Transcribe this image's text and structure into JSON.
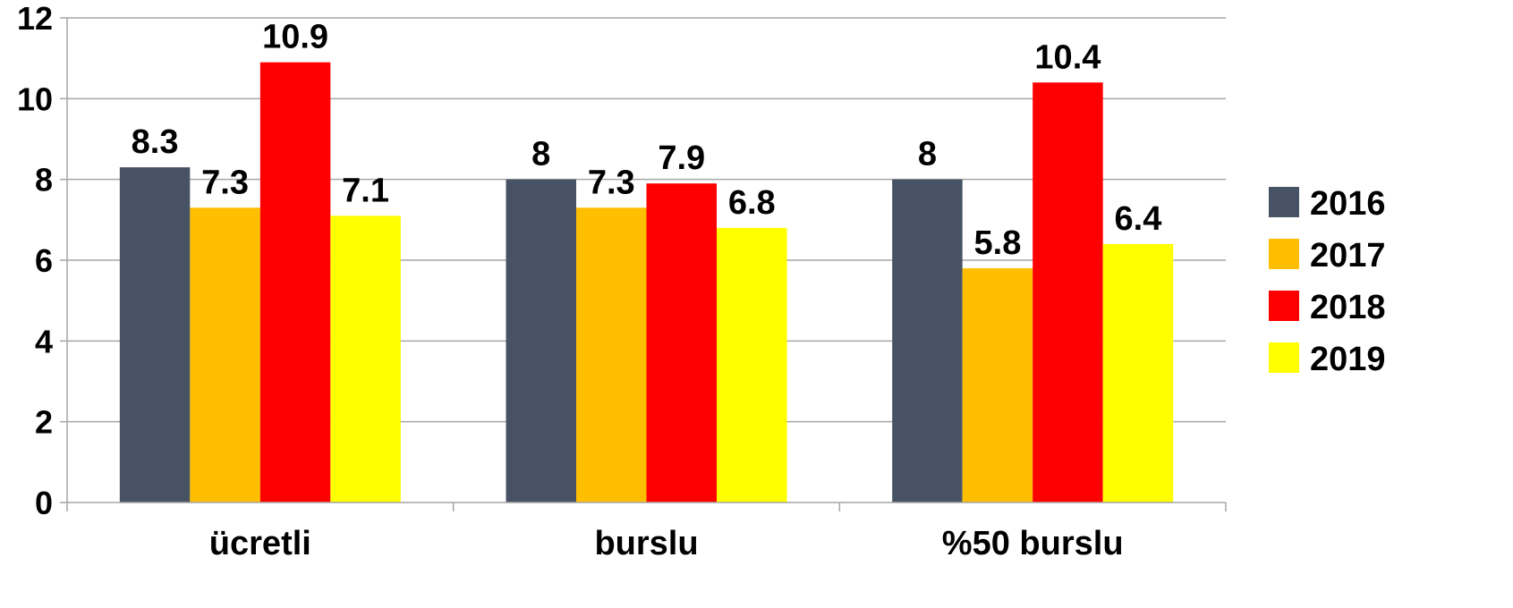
{
  "chart_data": {
    "type": "bar",
    "categories": [
      "ücretli",
      "burslu",
      "%50 burslu"
    ],
    "series": [
      {
        "name": "2016",
        "color": "#475365",
        "values": [
          8.3,
          8,
          8
        ]
      },
      {
        "name": "2017",
        "color": "#ffbf00",
        "values": [
          7.3,
          7.3,
          5.8
        ]
      },
      {
        "name": "2018",
        "color": "#ff0000",
        "values": [
          10.9,
          7.9,
          10.4
        ]
      },
      {
        "name": "2019",
        "color": "#ffff00",
        "values": [
          7.1,
          6.8,
          6.4
        ]
      }
    ],
    "data_labels": [
      [
        "8.3",
        "8",
        "8"
      ],
      [
        "7.3",
        "7.3",
        "5.8"
      ],
      [
        "10.9",
        "7.9",
        "10.4"
      ],
      [
        "7.1",
        "6.8",
        "6.4"
      ]
    ],
    "title": "",
    "xlabel": "",
    "ylabel": "",
    "ylim": [
      0,
      12
    ],
    "yticks": [
      0,
      2,
      4,
      6,
      8,
      10,
      12
    ],
    "ytick_labels": [
      "0",
      "2",
      "4",
      "6",
      "8",
      "10",
      "12"
    ],
    "grid": true,
    "legend_position": "right"
  }
}
